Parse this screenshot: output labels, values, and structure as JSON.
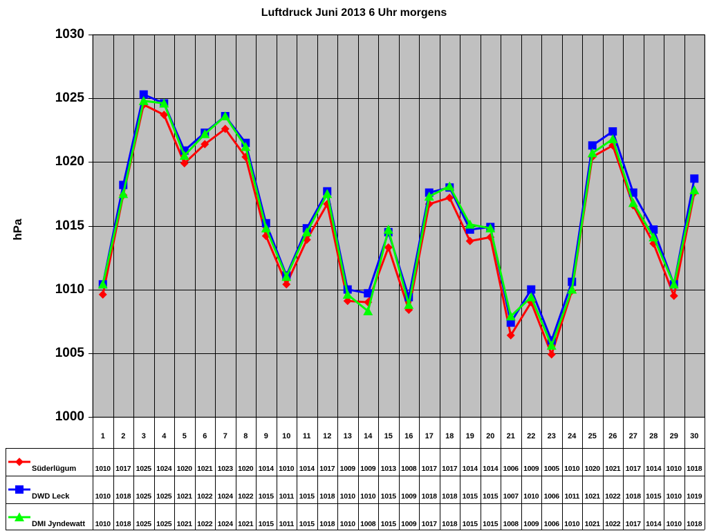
{
  "chart_data": {
    "type": "line",
    "title": "Luftdruck Juni 2013 6 Uhr morgens",
    "xlabel": "",
    "ylabel": "hPa",
    "ylim": [
      1000,
      1030
    ],
    "yticks": [
      1000,
      1005,
      1010,
      1015,
      1020,
      1025,
      1030
    ],
    "grid": true,
    "legend_position": "data-table-left",
    "categories": [
      "1",
      "2",
      "3",
      "4",
      "5",
      "6",
      "7",
      "8",
      "9",
      "10",
      "11",
      "12",
      "13",
      "14",
      "15",
      "16",
      "17",
      "18",
      "19",
      "20",
      "21",
      "22",
      "23",
      "24",
      "25",
      "26",
      "27",
      "28",
      "29",
      "30"
    ],
    "series": [
      {
        "name": "Süderlügum",
        "color": "#ff0000",
        "marker": "diamond",
        "values": [
          1009.6,
          1017.4,
          1024.5,
          1023.7,
          1019.9,
          1021.4,
          1022.6,
          1020.4,
          1014.2,
          1010.4,
          1013.9,
          1016.7,
          1009.1,
          1009.0,
          1013.3,
          1008.4,
          1016.7,
          1017.2,
          1013.8,
          1014.1,
          1006.4,
          1009.0,
          1004.9,
          1009.9,
          1020.4,
          1021.3,
          1016.6,
          1013.6,
          1009.5,
          1017.6
        ],
        "table_values": [
          1010,
          1017,
          1025,
          1024,
          1020,
          1021,
          1023,
          1020,
          1014,
          1010,
          1014,
          1017,
          1009,
          1009,
          1013,
          1008,
          1017,
          1017,
          1014,
          1014,
          1006,
          1009,
          1005,
          1010,
          1020,
          1021,
          1017,
          1014,
          1010,
          1018
        ]
      },
      {
        "name": "DWD Leck",
        "color": "#0000ff",
        "marker": "square",
        "values": [
          1010.4,
          1018.2,
          1025.3,
          1024.6,
          1020.9,
          1022.3,
          1023.6,
          1021.5,
          1015.2,
          1011.1,
          1014.8,
          1017.7,
          1010.0,
          1009.7,
          1014.5,
          1009.4,
          1017.6,
          1018.0,
          1014.7,
          1014.9,
          1007.4,
          1010.0,
          1006.0,
          1010.6,
          1021.3,
          1022.4,
          1017.6,
          1014.7,
          1010.4,
          1018.7
        ],
        "table_values": [
          1010,
          1018,
          1025,
          1025,
          1021,
          1022,
          1024,
          1022,
          1015,
          1011,
          1015,
          1018,
          1010,
          1010,
          1015,
          1009,
          1018,
          1018,
          1015,
          1015,
          1007,
          1010,
          1006,
          1011,
          1021,
          1022,
          1018,
          1015,
          1010,
          1019
        ]
      },
      {
        "name": "DMI Jyndewatt",
        "color": "#00ff00",
        "marker": "triangle",
        "values": [
          1010.4,
          1017.5,
          1024.8,
          1024.6,
          1020.5,
          1022.2,
          1023.6,
          1021.2,
          1014.8,
          1011.0,
          1014.5,
          1017.5,
          1009.6,
          1008.3,
          1014.7,
          1008.8,
          1017.3,
          1018.1,
          1015.1,
          1014.8,
          1007.9,
          1009.4,
          1005.6,
          1010.0,
          1020.7,
          1021.8,
          1016.8,
          1014.1,
          1010.4,
          1017.8
        ],
        "table_values": [
          1010,
          1018,
          1025,
          1025,
          1021,
          1022,
          1024,
          1021,
          1015,
          1011,
          1015,
          1018,
          1010,
          1008,
          1015,
          1009,
          1017,
          1018,
          1015,
          1015,
          1008,
          1009,
          1006,
          1010,
          1021,
          1022,
          1017,
          1014,
          1010,
          1018
        ]
      }
    ]
  },
  "colors": {
    "plot_background": "#c0c0c0",
    "grid": "#000000"
  }
}
